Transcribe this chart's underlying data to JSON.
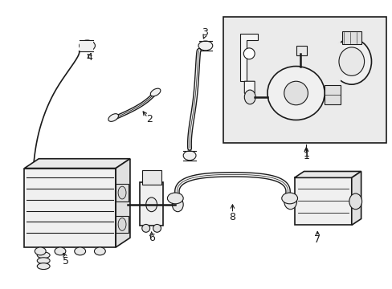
{
  "background_color": "#ffffff",
  "line_color": "#1a1a1a",
  "fig_width": 4.89,
  "fig_height": 3.6,
  "dpi": 100
}
